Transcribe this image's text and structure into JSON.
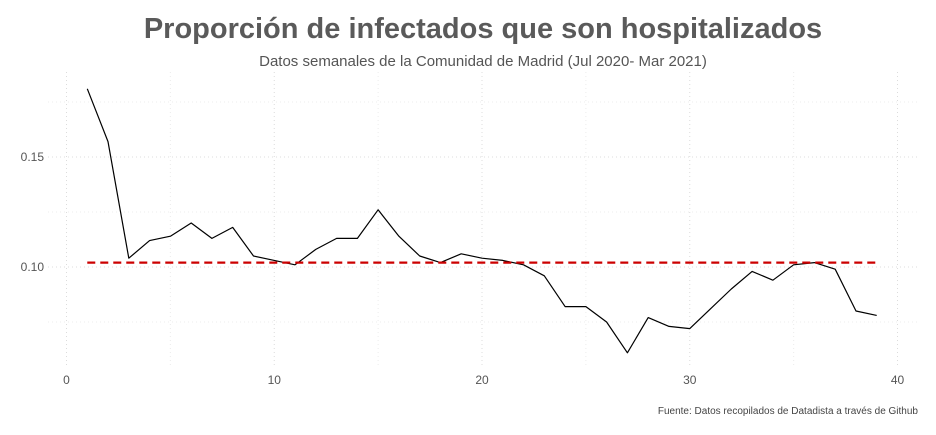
{
  "chart_data": {
    "type": "line",
    "title": "Proporción de infectados que son hospitalizados",
    "subtitle": "Datos semanales de la Comunidad de Madrid (Jul 2020- Mar 2021)",
    "caption": "Fuente: Datos recopilados de Datadista a través de Github",
    "xlabel": "",
    "ylabel": "",
    "xlim": [
      0,
      40
    ],
    "ylim": [
      0.055,
      0.185
    ],
    "x_ticks": [
      0,
      10,
      20,
      30,
      40
    ],
    "x_tick_labels": [
      "0",
      "10",
      "20",
      "30",
      "40"
    ],
    "y_ticks": [
      0.1,
      0.15
    ],
    "y_tick_labels": [
      "0.10",
      "0.15"
    ],
    "grid": true,
    "legend": "none",
    "colors": {
      "line": "#000000",
      "reference": "#cc0000"
    },
    "series": [
      {
        "x": [
          1,
          2,
          3,
          4,
          5,
          6,
          7,
          8,
          9,
          10,
          11,
          12,
          13,
          14,
          15,
          16,
          17,
          18,
          19,
          20,
          21,
          22,
          23,
          24,
          25,
          26,
          27,
          28,
          29,
          30,
          31,
          32,
          33,
          34,
          35,
          36,
          37,
          38,
          39
        ],
        "values": [
          0.181,
          0.157,
          0.104,
          0.112,
          0.114,
          0.12,
          0.113,
          0.118,
          0.105,
          0.103,
          0.101,
          0.108,
          0.113,
          0.113,
          0.126,
          0.114,
          0.105,
          0.102,
          0.106,
          0.104,
          0.103,
          0.101,
          0.096,
          0.082,
          0.082,
          0.075,
          0.061,
          0.077,
          0.073,
          0.072,
          0.081,
          0.09,
          0.098,
          0.094,
          0.101,
          0.102,
          0.099,
          0.08,
          0.078
        ]
      }
    ],
    "reference_line": {
      "y": 0.102,
      "x_start": 1,
      "x_end": 39,
      "style": "dashed"
    }
  }
}
